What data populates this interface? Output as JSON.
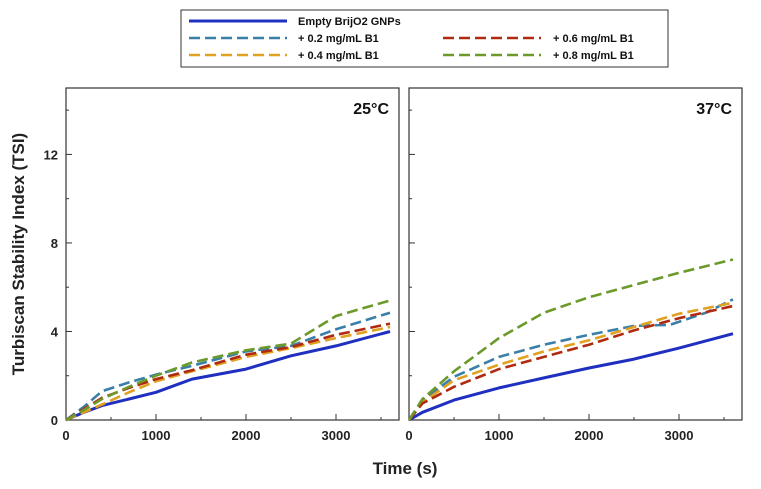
{
  "chart_data": [
    {
      "type": "line",
      "title": "25°C",
      "xlabel": "Time (s)",
      "ylabel": "Turbiscan Stability Index (TSI)",
      "xlim": [
        0,
        3700
      ],
      "ylim": [
        0,
        15
      ],
      "xticks": [
        0,
        1000,
        2000,
        3000
      ],
      "yticks": [
        0,
        4,
        8,
        12
      ],
      "grid": false,
      "series": [
        {
          "name": "Empty BrijO2 GNPs",
          "color": "#1f2fbf",
          "dash": "solid",
          "x": [
            0,
            200,
            400,
            700,
            1000,
            1400,
            2000,
            2500,
            3000,
            3600
          ],
          "y": [
            0,
            0.35,
            0.65,
            0.95,
            1.25,
            1.85,
            2.3,
            2.9,
            3.35,
            4.0
          ]
        },
        {
          "name": "+ 0.2 mg/mL B1",
          "color": "#3a7fa8",
          "dash": "dashed",
          "x": [
            0,
            200,
            400,
            700,
            1000,
            1400,
            2000,
            2500,
            3000,
            3600
          ],
          "y": [
            0,
            0.6,
            1.3,
            1.7,
            2.05,
            2.45,
            3.1,
            3.35,
            4.1,
            4.85
          ]
        },
        {
          "name": "+ 0.4 mg/mL B1",
          "color": "#e0a020",
          "dash": "dashed",
          "x": [
            0,
            200,
            400,
            700,
            1000,
            1400,
            2000,
            2500,
            3000,
            3600
          ],
          "y": [
            0,
            0.35,
            0.7,
            1.25,
            1.75,
            2.2,
            2.85,
            3.25,
            3.7,
            4.2
          ]
        },
        {
          "name": "+ 0.6 mg/mL B1",
          "color": "#b02a10",
          "dash": "dashed",
          "x": [
            0,
            200,
            400,
            700,
            1000,
            1400,
            2000,
            2500,
            3000,
            3600
          ],
          "y": [
            0,
            0.5,
            1.0,
            1.45,
            1.85,
            2.25,
            2.95,
            3.3,
            3.85,
            4.35
          ]
        },
        {
          "name": "+ 0.8 mg/mL B1",
          "color": "#6b9a2a",
          "dash": "dashed",
          "x": [
            0,
            200,
            400,
            700,
            1000,
            1400,
            2000,
            2500,
            3000,
            3600
          ],
          "y": [
            0,
            0.45,
            0.95,
            1.5,
            2.0,
            2.6,
            3.15,
            3.45,
            4.7,
            5.4
          ]
        }
      ]
    },
    {
      "type": "line",
      "title": "37°C",
      "xlabel": "Time (s)",
      "ylabel": "Turbiscan Stability Index (TSI)",
      "xlim": [
        0,
        3700
      ],
      "ylim": [
        0,
        15
      ],
      "xticks": [
        0,
        1000,
        2000,
        3000
      ],
      "yticks": [
        0,
        4,
        8,
        12
      ],
      "grid": false,
      "series": [
        {
          "name": "Empty BrijO2 GNPs",
          "color": "#1f2fbf",
          "dash": "solid",
          "x": [
            0,
            150,
            500,
            1000,
            1500,
            2000,
            2500,
            3000,
            3600
          ],
          "y": [
            0,
            0.35,
            0.9,
            1.45,
            1.9,
            2.35,
            2.75,
            3.25,
            3.9
          ]
        },
        {
          "name": "+ 0.2 mg/mL B1",
          "color": "#3a7fa8",
          "dash": "dashed",
          "x": [
            0,
            150,
            500,
            1000,
            1500,
            2000,
            2500,
            2900,
            3300,
            3600
          ],
          "y": [
            0,
            0.9,
            1.95,
            2.85,
            3.4,
            3.85,
            4.25,
            4.3,
            4.85,
            5.45
          ]
        },
        {
          "name": "+ 0.4 mg/mL B1",
          "color": "#e0a020",
          "dash": "dashed",
          "x": [
            0,
            150,
            500,
            1000,
            1500,
            2000,
            2500,
            3000,
            3600
          ],
          "y": [
            0,
            0.8,
            1.8,
            2.5,
            3.1,
            3.6,
            4.2,
            4.8,
            5.3
          ]
        },
        {
          "name": "+ 0.6 mg/mL B1",
          "color": "#b02a10",
          "dash": "dashed",
          "x": [
            0,
            150,
            500,
            1000,
            1500,
            2000,
            2500,
            3000,
            3600
          ],
          "y": [
            0,
            0.75,
            1.5,
            2.3,
            2.85,
            3.4,
            4.05,
            4.6,
            5.15
          ]
        },
        {
          "name": "+ 0.8 mg/mL B1",
          "color": "#6b9a2a",
          "dash": "dashed",
          "x": [
            0,
            150,
            500,
            1000,
            1500,
            2000,
            2500,
            3000,
            3600
          ],
          "y": [
            0,
            0.95,
            2.2,
            3.7,
            4.85,
            5.55,
            6.1,
            6.65,
            7.25
          ]
        }
      ]
    }
  ],
  "legend": {
    "placement": "top-center",
    "entries": [
      {
        "label": "Empty BrijO2 GNPs",
        "color": "#1f2fbf",
        "dash": "solid"
      },
      {
        "label": "+ 0.2 mg/mL B1",
        "color": "#3a7fa8",
        "dash": "dashed"
      },
      {
        "label": "+ 0.6 mg/mL B1",
        "color": "#b02a10",
        "dash": "dashed"
      },
      {
        "label": "+ 0.4 mg/mL B1",
        "color": "#e0a020",
        "dash": "dashed"
      },
      {
        "label": "+ 0.8 mg/mL B1",
        "color": "#6b9a2a",
        "dash": "dashed"
      }
    ]
  }
}
